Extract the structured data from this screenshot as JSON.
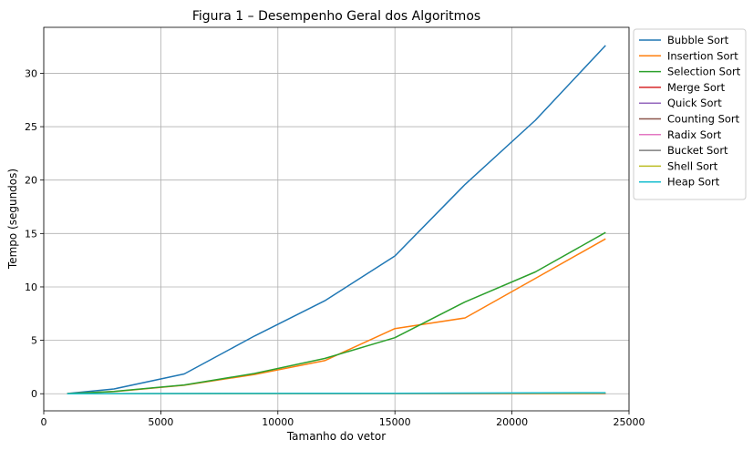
{
  "chart_data": {
    "type": "line",
    "title": "Figura 1 – Desempenho Geral dos Algoritmos",
    "xlabel": "Tamanho do vetor",
    "ylabel": "Tempo (segundos)",
    "xlim": [
      0,
      25000
    ],
    "ylim": [
      -1.6,
      34.3
    ],
    "xticks": [
      0,
      5000,
      10000,
      15000,
      20000,
      25000
    ],
    "yticks": [
      0,
      5,
      10,
      15,
      20,
      25,
      30
    ],
    "grid": true,
    "legend_position": "outside-right-top",
    "x": [
      1000,
      3000,
      6000,
      9000,
      12000,
      15000,
      18000,
      21000,
      24000
    ],
    "series": [
      {
        "name": "Bubble Sort",
        "color": "#1f77b4",
        "values": [
          0.02,
          0.45,
          1.85,
          5.4,
          8.7,
          12.9,
          19.6,
          25.6,
          32.6
        ]
      },
      {
        "name": "Insertion Sort",
        "color": "#ff7f0e",
        "values": [
          0.01,
          0.2,
          0.8,
          1.8,
          3.1,
          6.1,
          7.1,
          10.8,
          14.5
        ]
      },
      {
        "name": "Selection Sort",
        "color": "#2ca02c",
        "values": [
          0.01,
          0.22,
          0.82,
          1.9,
          3.3,
          5.25,
          8.6,
          11.4,
          15.1
        ]
      },
      {
        "name": "Merge Sort",
        "color": "#d62728",
        "values": [
          0.0,
          0.0,
          0.01,
          0.01,
          0.01,
          0.02,
          0.02,
          0.02,
          0.03
        ]
      },
      {
        "name": "Quick Sort",
        "color": "#9467bd",
        "values": [
          0.0,
          0.0,
          0.0,
          0.01,
          0.01,
          0.01,
          0.01,
          0.02,
          0.02
        ]
      },
      {
        "name": "Counting Sort",
        "color": "#8c564b",
        "values": [
          0.0,
          0.0,
          0.0,
          0.0,
          0.0,
          0.0,
          0.0,
          0.01,
          0.01
        ]
      },
      {
        "name": "Radix Sort",
        "color": "#e377c2",
        "values": [
          0.0,
          0.0,
          0.01,
          0.01,
          0.01,
          0.01,
          0.02,
          0.02,
          0.02
        ]
      },
      {
        "name": "Bucket Sort",
        "color": "#7f7f7f",
        "values": [
          0.0,
          0.01,
          0.01,
          0.02,
          0.02,
          0.03,
          0.04,
          0.05,
          0.06
        ]
      },
      {
        "name": "Shell Sort",
        "color": "#bcbd22",
        "values": [
          0.0,
          0.0,
          0.01,
          0.01,
          0.02,
          0.02,
          0.03,
          0.03,
          0.04
        ]
      },
      {
        "name": "Heap Sort",
        "color": "#17becf",
        "values": [
          0.0,
          0.01,
          0.02,
          0.03,
          0.04,
          0.05,
          0.06,
          0.08,
          0.1
        ]
      }
    ]
  }
}
